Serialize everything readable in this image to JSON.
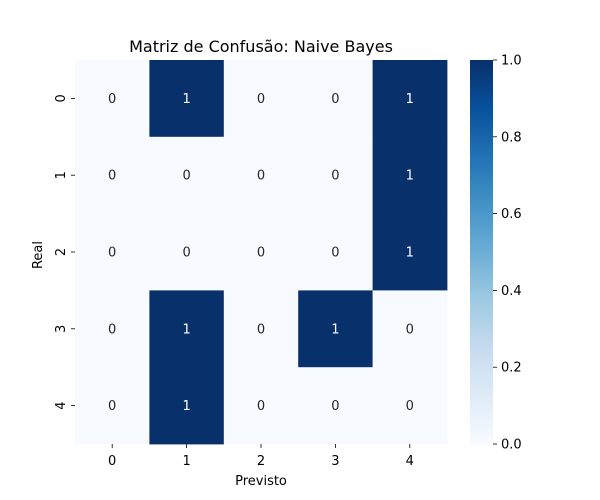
{
  "chart_data": {
    "type": "heatmap",
    "title": "Matriz de Confusão: Naive Bayes",
    "xlabel": "Previsto",
    "ylabel": "Real",
    "x_categories": [
      "0",
      "1",
      "2",
      "3",
      "4"
    ],
    "y_categories": [
      "0",
      "1",
      "2",
      "3",
      "4"
    ],
    "values": [
      [
        0,
        1,
        0,
        0,
        1
      ],
      [
        0,
        0,
        0,
        0,
        1
      ],
      [
        0,
        0,
        0,
        0,
        1
      ],
      [
        0,
        1,
        0,
        1,
        0
      ],
      [
        0,
        1,
        0,
        0,
        0
      ]
    ],
    "colorbar": {
      "range": [
        0.0,
        1.0
      ],
      "ticks": [
        "0.0",
        "0.2",
        "0.4",
        "0.6",
        "0.8",
        "1.0"
      ],
      "colormap": "Blues",
      "low_color": "#f7fbff",
      "high_color": "#08306b"
    },
    "cell_text_dark": "#262626",
    "cell_text_light": "#ffffff",
    "grid": false
  }
}
